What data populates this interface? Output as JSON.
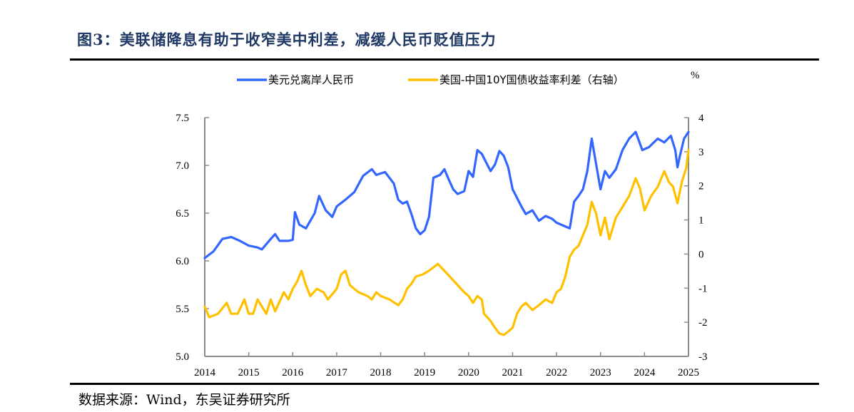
{
  "figure": {
    "title": "图3：美联储降息有助于收窄美中利差，减缓人民币贬值压力",
    "source": "数据来源：Wind，东吴证券研究所"
  },
  "chart_data": {
    "type": "line",
    "title": "",
    "xlabel": "",
    "ylabel": "",
    "y2label": "%",
    "xlim": [
      2014,
      2025
    ],
    "ylim": [
      5.0,
      7.5
    ],
    "y2lim": [
      -3,
      4
    ],
    "x_ticks": [
      "2014",
      "2015",
      "2016",
      "2017",
      "2018",
      "2019",
      "2020",
      "2021",
      "2022",
      "2023",
      "2024",
      "2025"
    ],
    "y_ticks": [
      "5.0",
      "5.5",
      "6.0",
      "6.5",
      "7.0",
      "7.5"
    ],
    "y2_ticks": [
      "-3",
      "-2",
      "-1",
      "0",
      "1",
      "2",
      "3",
      "4"
    ],
    "grid": false,
    "legend_position": "top",
    "series": [
      {
        "name": "美元兑离岸人民币",
        "axis": "left",
        "color": "#3366ff",
        "x": [
          2014.0,
          2014.2,
          2014.4,
          2014.6,
          2014.8,
          2015.0,
          2015.2,
          2015.3,
          2015.5,
          2015.6,
          2015.7,
          2015.9,
          2016.0,
          2016.05,
          2016.15,
          2016.3,
          2016.5,
          2016.6,
          2016.75,
          2016.9,
          2017.0,
          2017.2,
          2017.4,
          2017.6,
          2017.8,
          2017.9,
          2018.1,
          2018.3,
          2018.4,
          2018.5,
          2018.6,
          2018.7,
          2018.8,
          2018.9,
          2019.0,
          2019.1,
          2019.2,
          2019.35,
          2019.45,
          2019.55,
          2019.65,
          2019.75,
          2019.9,
          2020.0,
          2020.1,
          2020.2,
          2020.3,
          2020.4,
          2020.5,
          2020.6,
          2020.7,
          2020.8,
          2020.9,
          2021.0,
          2021.2,
          2021.3,
          2021.45,
          2021.6,
          2021.75,
          2021.9,
          2022.0,
          2022.15,
          2022.3,
          2022.4,
          2022.5,
          2022.6,
          2022.7,
          2022.8,
          2022.9,
          2023.0,
          2023.1,
          2023.2,
          2023.35,
          2023.5,
          2023.65,
          2023.8,
          2023.95,
          2024.1,
          2024.3,
          2024.45,
          2024.6,
          2024.7,
          2024.75,
          2024.8,
          2024.9,
          2025.0
        ],
        "values": [
          6.03,
          6.1,
          6.23,
          6.25,
          6.21,
          6.16,
          6.14,
          6.12,
          6.23,
          6.28,
          6.21,
          6.21,
          6.22,
          6.51,
          6.38,
          6.34,
          6.5,
          6.68,
          6.53,
          6.46,
          6.57,
          6.64,
          6.72,
          6.89,
          6.96,
          6.9,
          6.93,
          6.81,
          6.64,
          6.6,
          6.62,
          6.49,
          6.34,
          6.28,
          6.32,
          6.46,
          6.87,
          6.9,
          6.96,
          6.85,
          6.75,
          6.7,
          6.73,
          6.94,
          6.88,
          7.16,
          7.12,
          7.03,
          6.94,
          7.01,
          7.15,
          7.1,
          6.98,
          6.75,
          6.57,
          6.49,
          6.53,
          6.42,
          6.47,
          6.44,
          6.4,
          6.37,
          6.34,
          6.62,
          6.68,
          6.75,
          6.94,
          7.28,
          7.01,
          6.75,
          6.94,
          6.87,
          6.96,
          7.16,
          7.28,
          7.35,
          7.16,
          7.19,
          7.28,
          7.24,
          7.31,
          7.16,
          6.98,
          7.09,
          7.28,
          7.35
        ]
      },
      {
        "name": "美国-中国10Y国债收益率利差（右轴）",
        "axis": "right",
        "color": "#ffc000",
        "x": [
          2014.0,
          2014.1,
          2014.3,
          2014.5,
          2014.6,
          2014.75,
          2014.9,
          2015.0,
          2015.1,
          2015.2,
          2015.4,
          2015.5,
          2015.6,
          2015.8,
          2015.9,
          2016.0,
          2016.1,
          2016.2,
          2016.3,
          2016.4,
          2016.55,
          2016.7,
          2016.8,
          2017.0,
          2017.1,
          2017.2,
          2017.3,
          2017.4,
          2017.5,
          2017.7,
          2017.8,
          2017.9,
          2018.0,
          2018.2,
          2018.4,
          2018.5,
          2018.6,
          2018.7,
          2018.8,
          2018.95,
          2019.1,
          2019.2,
          2019.3,
          2019.45,
          2019.6,
          2019.75,
          2019.9,
          2020.0,
          2020.1,
          2020.2,
          2020.3,
          2020.35,
          2020.5,
          2020.6,
          2020.7,
          2020.8,
          2020.9,
          2021.0,
          2021.1,
          2021.2,
          2021.3,
          2021.45,
          2021.6,
          2021.75,
          2021.9,
          2022.0,
          2022.1,
          2022.2,
          2022.3,
          2022.4,
          2022.5,
          2022.6,
          2022.7,
          2022.8,
          2022.9,
          2023.0,
          2023.1,
          2023.2,
          2023.35,
          2023.5,
          2023.65,
          2023.8,
          2023.9,
          2024.0,
          2024.15,
          2024.3,
          2024.45,
          2024.55,
          2024.65,
          2024.75,
          2024.85,
          2024.95,
          2025.0
        ],
        "values": [
          -1.54,
          -1.85,
          -1.75,
          -1.43,
          -1.75,
          -1.75,
          -1.33,
          -1.75,
          -1.75,
          -1.33,
          -1.75,
          -1.33,
          -1.68,
          -1.12,
          -1.33,
          -1.02,
          -0.81,
          -0.49,
          -0.91,
          -1.23,
          -1.02,
          -1.12,
          -1.33,
          -1.02,
          -0.6,
          -0.49,
          -0.91,
          -1.02,
          -1.12,
          -1.23,
          -1.33,
          -1.12,
          -1.23,
          -1.33,
          -1.5,
          -1.33,
          -1.02,
          -0.87,
          -0.66,
          -0.6,
          -0.49,
          -0.39,
          -0.29,
          -0.49,
          -0.7,
          -0.91,
          -1.12,
          -1.23,
          -1.43,
          -1.23,
          -1.33,
          -1.75,
          -1.96,
          -2.16,
          -2.33,
          -2.37,
          -2.27,
          -2.16,
          -1.75,
          -1.54,
          -1.43,
          -1.64,
          -1.5,
          -1.33,
          -1.43,
          -1.12,
          -1.02,
          -0.66,
          -0.08,
          0.13,
          0.24,
          0.55,
          0.86,
          1.53,
          1.18,
          0.55,
          1.07,
          0.44,
          1.07,
          1.38,
          1.7,
          2.22,
          1.91,
          1.28,
          1.7,
          1.97,
          2.43,
          2.12,
          1.97,
          1.49,
          2.12,
          2.53,
          3.05
        ]
      }
    ]
  }
}
